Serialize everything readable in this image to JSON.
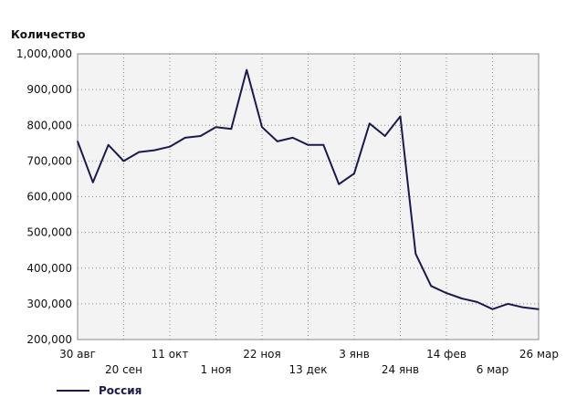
{
  "chart_data": {
    "type": "line",
    "ylabel": "Количество",
    "ylim": [
      200000,
      1000000
    ],
    "yticks": [
      200000,
      300000,
      400000,
      500000,
      600000,
      700000,
      800000,
      900000,
      1000000
    ],
    "ytick_labels": [
      "200,000",
      "300,000",
      "400,000",
      "500,000",
      "600,000",
      "700,000",
      "800,000",
      "900,000",
      "1,000,000"
    ],
    "x_ticks": [
      {
        "label": "30 авг",
        "index": 0,
        "row": 1
      },
      {
        "label": "20 сен",
        "index": 3,
        "row": 2
      },
      {
        "label": "11 окт",
        "index": 6,
        "row": 1
      },
      {
        "label": "1 ноя",
        "index": 9,
        "row": 2
      },
      {
        "label": "22 ноя",
        "index": 12,
        "row": 1
      },
      {
        "label": "13 дек",
        "index": 15,
        "row": 2
      },
      {
        "label": "3 янв",
        "index": 18,
        "row": 1
      },
      {
        "label": "24 янв",
        "index": 21,
        "row": 2
      },
      {
        "label": "14 фев",
        "index": 24,
        "row": 1
      },
      {
        "label": "6 мар",
        "index": 27,
        "row": 2
      },
      {
        "label": "26 мар",
        "index": 30,
        "row": 1
      }
    ],
    "grid": true,
    "legend_position": "bottom-left",
    "series": [
      {
        "name": "Россия",
        "color": "#1a1a4e",
        "values": [
          755000,
          640000,
          745000,
          700000,
          725000,
          730000,
          740000,
          765000,
          770000,
          795000,
          790000,
          955000,
          795000,
          755000,
          765000,
          745000,
          745000,
          635000,
          665000,
          805000,
          770000,
          825000,
          440000,
          350000,
          330000,
          315000,
          305000,
          285000,
          300000,
          290000,
          285000
        ]
      }
    ]
  }
}
